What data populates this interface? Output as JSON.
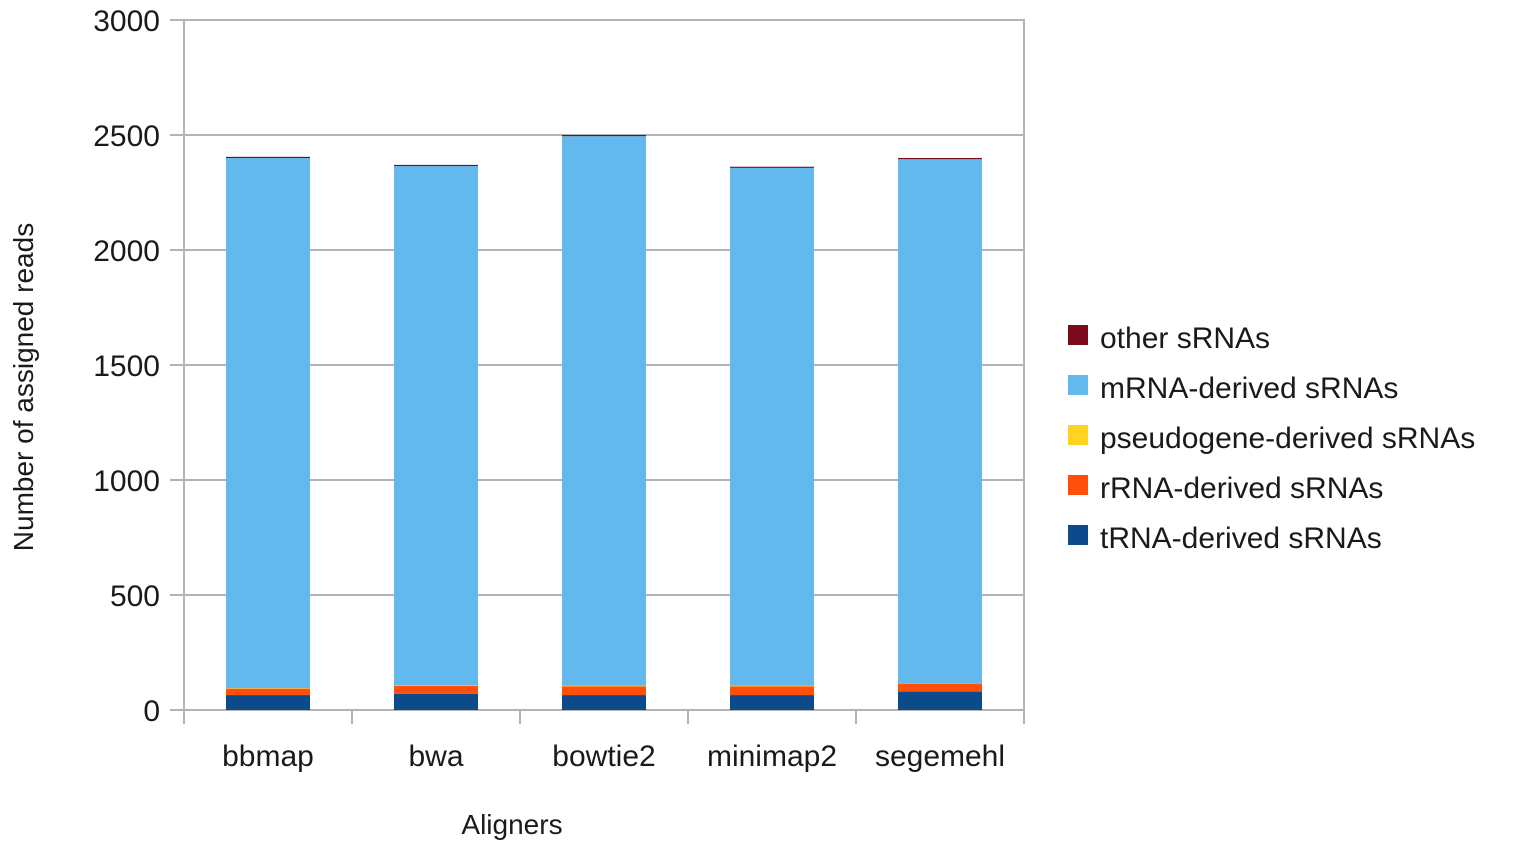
{
  "chart_data": {
    "type": "bar",
    "stacked": true,
    "xlabel": "Aligners",
    "ylabel": "Number of assigned reads",
    "ylim": [
      0,
      3000
    ],
    "yticks": [
      0,
      500,
      1000,
      1500,
      2000,
      2500,
      3000
    ],
    "grid": true,
    "legend_position": "right",
    "categories": [
      "bbmap",
      "bwa",
      "bowtie2",
      "minimap2",
      "segemehl"
    ],
    "series": [
      {
        "name": "tRNA-derived sRNAs",
        "color": "#0d4a8b",
        "values": [
          65,
          70,
          65,
          65,
          80
        ]
      },
      {
        "name": "rRNA-derived sRNAs",
        "color": "#ff4f0a",
        "values": [
          28,
          35,
          38,
          38,
          35
        ]
      },
      {
        "name": "pseudogene-derived sRNAs",
        "color": "#ffd320",
        "values": [
          2,
          2,
          2,
          2,
          2
        ]
      },
      {
        "name": "mRNA-derived sRNAs",
        "color": "#63b8ee",
        "values": [
          2305,
          2258,
          2390,
          2252,
          2278
        ]
      },
      {
        "name": "other sRNAs",
        "color": "#7b0a1d",
        "values": [
          5,
          5,
          5,
          5,
          5
        ]
      }
    ],
    "legend_order": [
      "other sRNAs",
      "mRNA-derived sRNAs",
      "pseudogene-derived sRNAs",
      "rRNA-derived sRNAs",
      "tRNA-derived sRNAs"
    ]
  }
}
